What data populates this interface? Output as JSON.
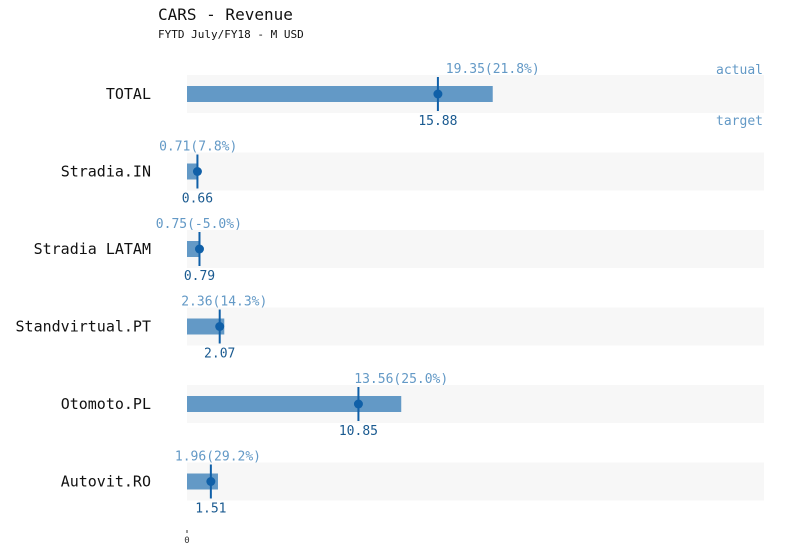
{
  "chart_data": {
    "type": "bar",
    "title": "CARS - Revenue",
    "subtitle": "FYTD July/FY18 - M USD",
    "legend": {
      "actual": "actual",
      "target": "target"
    },
    "categories": [
      "TOTAL",
      "Stradia.IN",
      "Stradia LATAM",
      "Standvirtual.PT",
      "Otomoto.PL",
      "Autovit.RO"
    ],
    "series": [
      {
        "name": "actual",
        "values": [
          19.35,
          0.71,
          0.75,
          2.36,
          13.56,
          1.96
        ]
      },
      {
        "name": "target",
        "values": [
          15.88,
          0.66,
          0.79,
          2.07,
          10.85,
          1.51
        ]
      }
    ],
    "actual_labels": [
      "19.35(21.8%)",
      "0.71(7.8%)",
      "0.75(-5.0%)",
      "2.36(14.3%)",
      "13.56(25.0%)",
      "1.96(29.2%)"
    ],
    "target_labels": [
      "15.88",
      "0.66",
      "0.79",
      "2.07",
      "10.85",
      "1.51"
    ],
    "xlim": [
      0,
      38
    ],
    "xticks": [
      "0"
    ],
    "colors": {
      "actual_bar": "#6399c6",
      "target_marker": "#1060a8",
      "background_band": "#f7f7f7",
      "actual_label": "#6399c6",
      "target_label": "#1a5a90"
    }
  }
}
